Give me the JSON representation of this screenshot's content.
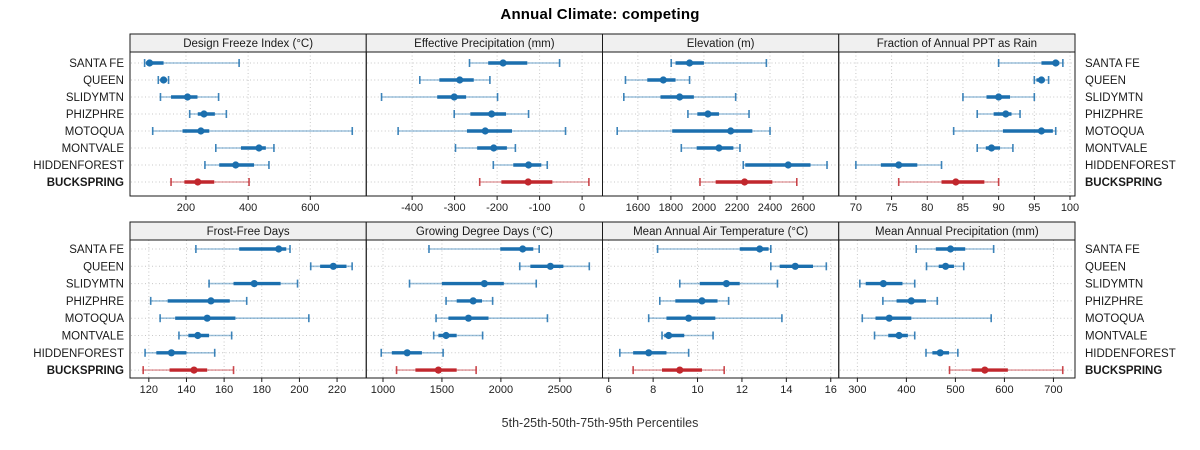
{
  "title": "Annual Climate: competing",
  "xlabel": "5th-25th-50th-75th-95th Percentiles",
  "sites": [
    "SANTA FE",
    "QUEEN",
    "SLIDYMTN",
    "PHIZPHRE",
    "MOTOQUA",
    "MONTVALE",
    "HIDDENFOREST",
    "BUCKSPRING"
  ],
  "highlight_site": "BUCKSPRING",
  "colors": {
    "series_blue": "#1b6fae",
    "highlight_red": "#c1272d",
    "header_bg": "#f0f0f0",
    "grid": "#c8c8c8",
    "border": "#1a1a1a",
    "text": "#1a1a1a"
  },
  "chart_data": {
    "type": "dotplot-percentiles",
    "percentiles": [
      "5th",
      "25th",
      "50th",
      "75th",
      "95th"
    ],
    "note": "values per site are [p5,p25,p50,p75,p95]; sites ordered top-to-bottom as in sites[]",
    "panels": [
      {
        "row": 0,
        "title": "Design Freeze Index (°C)",
        "xlim": [
          20,
          780
        ],
        "ticks": [
          200,
          400,
          600
        ],
        "values": [
          [
            67,
            72,
            83,
            128,
            371
          ],
          [
            111,
            118,
            128,
            138,
            144
          ],
          [
            118,
            152,
            205,
            237,
            305
          ],
          [
            212,
            238,
            258,
            293,
            330
          ],
          [
            93,
            189,
            248,
            275,
            735
          ],
          [
            296,
            377,
            435,
            457,
            483
          ],
          [
            261,
            307,
            360,
            419,
            467
          ],
          [
            152,
            195,
            238,
            291,
            403
          ]
        ]
      },
      {
        "row": 0,
        "title": "Effective Precipitation (mm)",
        "xlim": [
          -508,
          48
        ],
        "ticks": [
          -400,
          -300,
          -200,
          -100,
          0
        ],
        "values": [
          [
            -265,
            -221,
            -186,
            -129,
            -53
          ],
          [
            -382,
            -336,
            -288,
            -255,
            -217
          ],
          [
            -472,
            -341,
            -301,
            -273,
            -199
          ],
          [
            -301,
            -263,
            -213,
            -179,
            -126
          ],
          [
            -433,
            -271,
            -228,
            -165,
            -39
          ],
          [
            -298,
            -247,
            -208,
            -177,
            -157
          ],
          [
            -209,
            -162,
            -126,
            -96,
            -82
          ],
          [
            -241,
            -190,
            -127,
            -70,
            16
          ]
        ]
      },
      {
        "row": 0,
        "title": "Elevation (m)",
        "xlim": [
          1386,
          2816
        ],
        "ticks": [
          1600,
          1800,
          2000,
          2200,
          2400,
          2600
        ],
        "values": [
          [
            1802,
            1828,
            1913,
            2000,
            2378
          ],
          [
            1525,
            1657,
            1754,
            1828,
            1913
          ],
          [
            1515,
            1737,
            1853,
            1939,
            2192
          ],
          [
            1903,
            1960,
            2024,
            2091,
            2273
          ],
          [
            1475,
            1808,
            2162,
            2293,
            2400
          ],
          [
            1863,
            1956,
            2091,
            2178,
            2218
          ],
          [
            2238,
            2250,
            2510,
            2645,
            2745
          ],
          [
            1976,
            2071,
            2246,
            2414,
            2562
          ]
        ]
      },
      {
        "row": 0,
        "title": "Fraction of Annual PPT as Rain",
        "xlim": [
          67.6,
          100.7
        ],
        "ticks": [
          70,
          75,
          80,
          85,
          90,
          95,
          100
        ],
        "values": [
          [
            90,
            96,
            98,
            98.5,
            99
          ],
          [
            95,
            95.3,
            96,
            96.4,
            97
          ],
          [
            85,
            88.3,
            90,
            91.6,
            95
          ],
          [
            87,
            89.3,
            91,
            91.8,
            93
          ],
          [
            83.7,
            90.6,
            96,
            97.6,
            98
          ],
          [
            87,
            88.2,
            89,
            90.2,
            92
          ],
          [
            70,
            73.5,
            76,
            78.6,
            82
          ],
          [
            76,
            82,
            84,
            88,
            90
          ]
        ]
      },
      {
        "row": 1,
        "title": "Frost-Free Days",
        "xlim": [
          110,
          235.5
        ],
        "ticks": [
          120,
          140,
          160,
          180,
          200,
          220
        ],
        "values": [
          [
            145,
            168,
            189,
            193,
            195
          ],
          [
            206,
            211,
            218,
            225,
            228
          ],
          [
            152,
            165,
            176,
            190,
            199
          ],
          [
            121,
            130,
            153,
            163,
            172
          ],
          [
            126,
            134,
            151,
            166,
            205
          ],
          [
            136,
            141,
            146,
            152,
            164
          ],
          [
            118,
            124,
            132,
            140,
            155
          ],
          [
            117,
            131,
            144,
            151,
            165
          ]
        ]
      },
      {
        "row": 1,
        "title": "Growing Degree Days (°C)",
        "xlim": [
          858,
          2862
        ],
        "ticks": [
          1000,
          1500,
          2000,
          2500
        ],
        "values": [
          [
            1390,
            1995,
            2185,
            2275,
            2325
          ],
          [
            2160,
            2250,
            2420,
            2530,
            2750
          ],
          [
            1225,
            1500,
            1860,
            2025,
            2300
          ],
          [
            1535,
            1625,
            1765,
            1840,
            1930
          ],
          [
            1450,
            1555,
            1725,
            1895,
            2395
          ],
          [
            1430,
            1470,
            1535,
            1625,
            1845
          ],
          [
            985,
            1075,
            1205,
            1330,
            1510
          ],
          [
            1115,
            1275,
            1470,
            1625,
            1790
          ]
        ]
      },
      {
        "row": 1,
        "title": "Mean Annual Air Temperature (°C)",
        "xlim": [
          5.72,
          16.36
        ],
        "ticks": [
          6,
          8,
          10,
          12,
          14,
          16
        ],
        "values": [
          [
            8.2,
            11.9,
            12.8,
            13.2,
            13.3
          ],
          [
            13.3,
            13.7,
            14.4,
            15.2,
            15.8
          ],
          [
            9.2,
            10.1,
            11.3,
            11.9,
            13.6
          ],
          [
            8.3,
            9,
            10.2,
            10.9,
            11.4
          ],
          [
            7.8,
            8.6,
            9.6,
            10.8,
            13.8
          ],
          [
            8.4,
            8.5,
            8.7,
            9.4,
            10.7
          ],
          [
            6.5,
            7.1,
            7.8,
            8.6,
            9.6
          ],
          [
            7.1,
            8.4,
            9.2,
            10.2,
            11.2
          ]
        ]
      },
      {
        "row": 1,
        "title": "Mean Annual Precipitation (mm)",
        "xlim": [
          262,
          744
        ],
        "ticks": [
          300,
          400,
          500,
          600,
          700
        ],
        "values": [
          [
            420,
            460,
            490,
            520,
            578
          ],
          [
            441,
            466,
            480,
            497,
            517
          ],
          [
            305,
            317,
            353,
            392,
            417
          ],
          [
            352,
            380,
            410,
            440,
            463
          ],
          [
            310,
            337,
            365,
            410,
            573
          ],
          [
            335,
            363,
            385,
            403,
            417
          ],
          [
            440,
            453,
            469,
            487,
            505
          ],
          [
            488,
            533,
            560,
            607,
            719
          ]
        ]
      }
    ]
  }
}
